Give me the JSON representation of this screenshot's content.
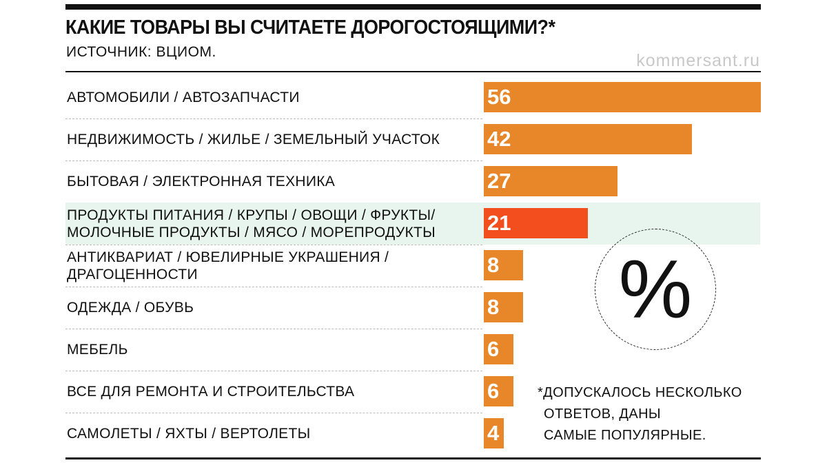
{
  "header": {
    "title": "КАКИЕ ТОВАРЫ ВЫ СЧИТАЕТЕ ДОРОГОСТОЯЩИМИ?*",
    "source": "ИСТОЧНИК: ВЦИОМ.",
    "brand": "kommersant.ru"
  },
  "chart_data": {
    "type": "bar",
    "orientation": "horizontal",
    "title": "КАКИЕ ТОВАРЫ ВЫ СЧИТАЕТЕ ДОРОГОСТОЯЩИМИ?*",
    "unit_symbol": "%",
    "categories": [
      [
        "АВТОМОБИЛИ / АВТОЗАПЧАСТИ"
      ],
      [
        "НЕДВИЖИМОСТЬ / ЖИЛЬЕ / ЗЕМЕЛЬНЫЙ УЧАСТОК"
      ],
      [
        "БЫТОВАЯ / ЭЛЕКТРОННАЯ ТЕХНИКА"
      ],
      [
        "ПРОДУКТЫ ПИТАНИЯ / КРУПЫ / ОВОЩИ / ФРУКТЫ/",
        "МОЛОЧНЫЕ ПРОДУКТЫ / МЯСО / МОРЕПРОДУКТЫ"
      ],
      [
        "АНТИКВАРИАТ / ЮВЕЛИРНЫЕ УКРАШЕНИЯ /",
        "ДРАГОЦЕННОСТИ"
      ],
      [
        "ОДЕЖДА / ОБУВЬ"
      ],
      [
        "МЕБЕЛЬ"
      ],
      [
        "ВСЕ ДЛЯ РЕМОНТА И СТРОИТЕЛЬСТВА"
      ],
      [
        "САМОЛЕТЫ / ЯХТЫ / ВЕРТОЛЕТЫ"
      ]
    ],
    "values": [
      56,
      42,
      27,
      21,
      8,
      8,
      6,
      6,
      4
    ],
    "highlight_index": 3,
    "xlim": [
      0,
      56
    ],
    "colors": {
      "bar": "#e8872a",
      "highlight": "#f24e1e",
      "highlight_bg": "#e8f5ef"
    }
  },
  "footnote": [
    "*ДОПУСКАЛОСЬ НЕСКОЛЬКО",
    "ОТВЕТОВ, ДАНЫ",
    "САМЫЕ ПОПУЛЯРНЫЕ."
  ]
}
